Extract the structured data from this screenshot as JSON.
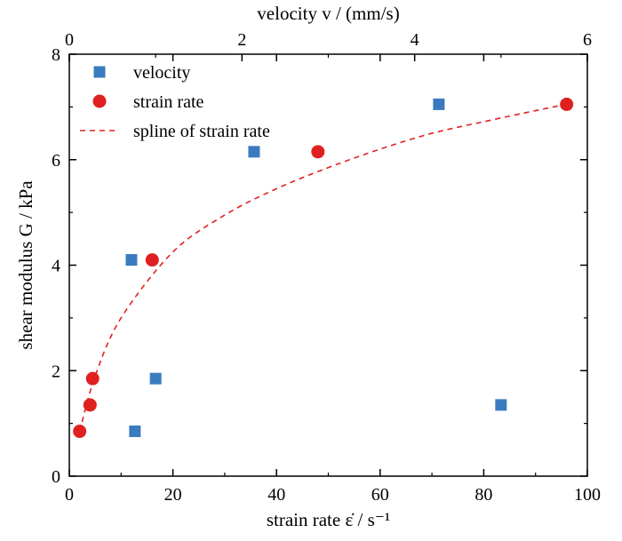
{
  "chart_data": {
    "type": "scatter",
    "xlabel": "strain rate ε̇ / s⁻¹",
    "ylabel": "shear modulus G / kPa",
    "top_xlabel": "velocity v / (mm/s)",
    "xlim": [
      0,
      100
    ],
    "ylim": [
      0,
      8
    ],
    "top_xlim": [
      0,
      6
    ],
    "x_ticks": [
      0,
      20,
      40,
      60,
      80,
      100
    ],
    "y_ticks": [
      0,
      2,
      4,
      6,
      8
    ],
    "top_x_ticks": [
      0,
      2,
      4,
      6
    ],
    "grid": false,
    "legend_position": "top-left",
    "series": [
      {
        "name": "velocity",
        "marker": "square",
        "color": "#3a7bbf",
        "axis": "top",
        "points": [
          {
            "x": 0.72,
            "y": 4.1
          },
          {
            "x": 0.76,
            "y": 0.85
          },
          {
            "x": 1.0,
            "y": 1.85
          },
          {
            "x": 2.14,
            "y": 6.15
          },
          {
            "x": 4.28,
            "y": 7.05
          },
          {
            "x": 5.0,
            "y": 1.35
          }
        ]
      },
      {
        "name": "strain rate",
        "marker": "circle",
        "color": "#e02020",
        "axis": "bottom",
        "points": [
          {
            "x": 2.0,
            "y": 0.85
          },
          {
            "x": 4.0,
            "y": 1.35
          },
          {
            "x": 4.5,
            "y": 1.85
          },
          {
            "x": 16.0,
            "y": 4.1
          },
          {
            "x": 48.0,
            "y": 6.15
          },
          {
            "x": 96.0,
            "y": 7.05
          }
        ]
      },
      {
        "name": "spline of strain rate",
        "style": "dashed",
        "color": "#e02020",
        "axis": "bottom",
        "points": [
          {
            "x": 2.0,
            "y": 0.85
          },
          {
            "x": 5.0,
            "y": 1.9
          },
          {
            "x": 10.0,
            "y": 3.0
          },
          {
            "x": 20.0,
            "y": 4.25
          },
          {
            "x": 30.0,
            "y": 4.95
          },
          {
            "x": 40.0,
            "y": 5.45
          },
          {
            "x": 50.0,
            "y": 5.85
          },
          {
            "x": 60.0,
            "y": 6.2
          },
          {
            "x": 70.0,
            "y": 6.5
          },
          {
            "x": 80.0,
            "y": 6.72
          },
          {
            "x": 90.0,
            "y": 6.93
          },
          {
            "x": 96.0,
            "y": 7.05
          }
        ]
      }
    ]
  }
}
